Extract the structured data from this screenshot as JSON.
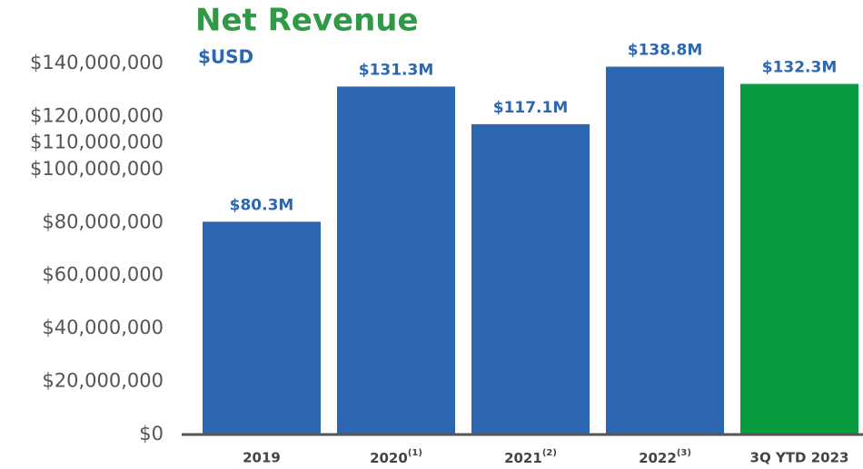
{
  "chart_data": {
    "type": "bar",
    "title": "Net Revenue",
    "subtitle": "$USD",
    "categories": [
      "2019",
      "2020(1)",
      "2021(2)",
      "2022(3)",
      "3Q YTD 2023"
    ],
    "values": [
      80300000,
      131300000,
      117100000,
      138800000,
      132300000
    ],
    "value_labels": [
      "$80.3M",
      "$131.3M",
      "$117.1M",
      "$138.8M",
      "$132.3M"
    ],
    "colors": [
      "#2e67b1",
      "#2e67b1",
      "#2e67b1",
      "#2e67b1",
      "#0a9a3e"
    ],
    "ylim": [
      0,
      140000000
    ],
    "yticks": [
      {
        "value": 0,
        "label": "$0"
      },
      {
        "value": 20000000,
        "label": "$20,000,000"
      },
      {
        "value": 40000000,
        "label": "$40,000,000"
      },
      {
        "value": 60000000,
        "label": "$60,000,000"
      },
      {
        "value": 80000000,
        "label": "$80,000,000"
      },
      {
        "value": 100000000,
        "label": "$100,000,000"
      },
      {
        "value": 110000000,
        "label": "$110,000,000"
      },
      {
        "value": 120000000,
        "label": "$120,000,000"
      },
      {
        "value": 140000000,
        "label": "$140,000,000"
      }
    ],
    "grid": false
  }
}
